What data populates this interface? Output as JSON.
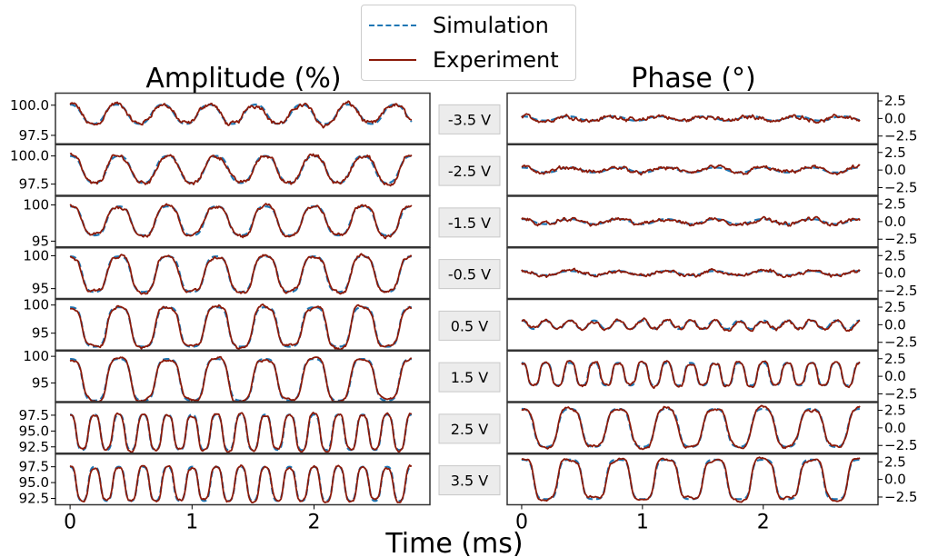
{
  "legend": {
    "simulation_label": "Simulation",
    "experiment_label": "Experiment"
  },
  "titles": {
    "amplitude": "Amplitude (%)",
    "phase": "Phase (°)",
    "xlabel": "Time (ms)"
  },
  "colors": {
    "simulation": "#1f77b4",
    "experiment": "#8b1a0a",
    "panel_border": "#333333",
    "voltage_box_bg": "#ececec",
    "voltage_box_border": "#c8c8c8"
  },
  "chart_data": {
    "type": "line",
    "x_range_ms": [
      0,
      2.8
    ],
    "x_ticks": [
      0,
      1,
      2
    ],
    "x_tick_labels": [
      "0",
      "1",
      "2"
    ],
    "xlim": [
      -0.12,
      2.95
    ],
    "series_names": [
      "Simulation",
      "Experiment"
    ],
    "rows": [
      {
        "voltage": "-3.5 V",
        "amplitude": {
          "ylim": [
            96.8,
            101.0
          ],
          "yticks": [
            97.5,
            100.0
          ],
          "ytick_labels": [
            "97.5",
            "100.0"
          ],
          "mean": 99.25,
          "swing": 1.6,
          "period_ms": 0.38,
          "shape": 1.0,
          "noise": 0.35
        },
        "phase": {
          "ylim": [
            -3.6,
            3.6
          ],
          "yticks": [
            -2.5,
            0.0,
            2.5
          ],
          "ytick_labels": [
            "−2.5",
            "0.0",
            "2.5"
          ],
          "mean": 0.0,
          "swing": 0.6,
          "period_ms": 0.38,
          "shape": 1.0,
          "noise": 0.55
        }
      },
      {
        "voltage": "-2.5 V",
        "amplitude": {
          "ylim": [
            96.5,
            101.0
          ],
          "yticks": [
            97.5,
            100.0
          ],
          "ytick_labels": [
            "97.5",
            "100.0"
          ],
          "mean": 98.8,
          "swing": 2.4,
          "period_ms": 0.4,
          "shape": 1.2,
          "noise": 0.35
        },
        "phase": {
          "ylim": [
            -3.6,
            3.6
          ],
          "yticks": [
            -2.5,
            0.0,
            2.5
          ],
          "ytick_labels": [
            "−2.5",
            "0.0",
            "2.5"
          ],
          "mean": 0.0,
          "swing": 0.7,
          "period_ms": 0.4,
          "shape": 1.0,
          "noise": 0.5
        }
      },
      {
        "voltage": "-1.5 V",
        "amplitude": {
          "ylim": [
            94.2,
            101.2
          ],
          "yticks": [
            95,
            100
          ],
          "ytick_labels": [
            "95",
            "100"
          ],
          "mean": 97.8,
          "swing": 4.0,
          "period_ms": 0.4,
          "shape": 1.5,
          "noise": 0.45
        },
        "phase": {
          "ylim": [
            -3.6,
            3.6
          ],
          "yticks": [
            -2.5,
            0.0,
            2.5
          ],
          "ytick_labels": [
            "−2.5",
            "0.0",
            "2.5"
          ],
          "mean": 0.0,
          "swing": 0.7,
          "period_ms": 0.4,
          "shape": 1.0,
          "noise": 0.5
        }
      },
      {
        "voltage": "-0.5 V",
        "amplitude": {
          "ylim": [
            93.5,
            101.2
          ],
          "yticks": [
            95,
            100
          ],
          "ytick_labels": [
            "95",
            "100"
          ],
          "mean": 97.2,
          "swing": 5.4,
          "period_ms": 0.4,
          "shape": 1.7,
          "noise": 0.45
        },
        "phase": {
          "ylim": [
            -3.6,
            3.6
          ],
          "yticks": [
            -2.5,
            0.0,
            2.5
          ],
          "ytick_labels": [
            "−2.5",
            "0.0",
            "2.5"
          ],
          "mean": 0.0,
          "swing": 0.6,
          "period_ms": 0.4,
          "shape": 1.0,
          "noise": 0.45
        }
      },
      {
        "voltage": "0.5 V",
        "amplitude": {
          "ylim": [
            92.0,
            101.0
          ],
          "yticks": [
            95,
            100
          ],
          "ytick_labels": [
            "95",
            "100"
          ],
          "mean": 96.1,
          "swing": 7.0,
          "period_ms": 0.4,
          "shape": 2.0,
          "noise": 0.45
        },
        "phase": {
          "ylim": [
            -3.6,
            3.6
          ],
          "yticks": [
            -2.5,
            0.0,
            2.5
          ],
          "ytick_labels": [
            "−2.5",
            "0.0",
            "2.5"
          ],
          "mean": 0.0,
          "swing": 1.2,
          "period_ms": 0.2,
          "shape": 1.0,
          "noise": 0.45
        }
      },
      {
        "voltage": "1.5 V",
        "amplitude": {
          "ylim": [
            91.5,
            101.0
          ],
          "yticks": [
            95,
            100
          ],
          "ytick_labels": [
            "95",
            "100"
          ],
          "mean": 95.6,
          "swing": 7.8,
          "period_ms": 0.4,
          "shape": 2.0,
          "noise": 0.4
        },
        "phase": {
          "ylim": [
            -3.6,
            3.6
          ],
          "yticks": [
            -2.5,
            0.0,
            2.5
          ],
          "ytick_labels": [
            "−2.5",
            "0.0",
            "2.5"
          ],
          "mean": 0.3,
          "swing": 3.2,
          "period_ms": 0.2,
          "shape": 1.8,
          "noise": 0.35
        }
      },
      {
        "voltage": "2.5 V",
        "amplitude": {
          "ylim": [
            91.5,
            99.5
          ],
          "yticks": [
            92.5,
            95.0,
            97.5
          ],
          "ytick_labels": [
            "92.5",
            "95.0",
            "97.5"
          ],
          "mean": 94.8,
          "swing": 5.6,
          "period_ms": 0.2,
          "shape": 1.6,
          "noise": 0.35
        },
        "phase": {
          "ylim": [
            -3.6,
            3.6
          ],
          "yticks": [
            -2.5,
            0.0,
            2.5
          ],
          "ytick_labels": [
            "−2.5",
            "0.0",
            "2.5"
          ],
          "mean": 0.0,
          "swing": 5.4,
          "period_ms": 0.4,
          "shape": 1.8,
          "noise": 0.35
        }
      },
      {
        "voltage": "3.5 V",
        "amplitude": {
          "ylim": [
            91.5,
            99.5
          ],
          "yticks": [
            92.5,
            95.0,
            97.5
          ],
          "ytick_labels": [
            "92.5",
            "95.0",
            "97.5"
          ],
          "mean": 94.8,
          "swing": 5.4,
          "period_ms": 0.2,
          "shape": 1.6,
          "noise": 0.35
        },
        "phase": {
          "ylim": [
            -3.6,
            3.6
          ],
          "yticks": [
            -2.5,
            0.0,
            2.5
          ],
          "ytick_labels": [
            "−2.5",
            "0.0",
            "2.5"
          ],
          "mean": 0.0,
          "swing": 5.6,
          "period_ms": 0.4,
          "shape": 2.4,
          "noise": 0.3
        }
      }
    ]
  }
}
